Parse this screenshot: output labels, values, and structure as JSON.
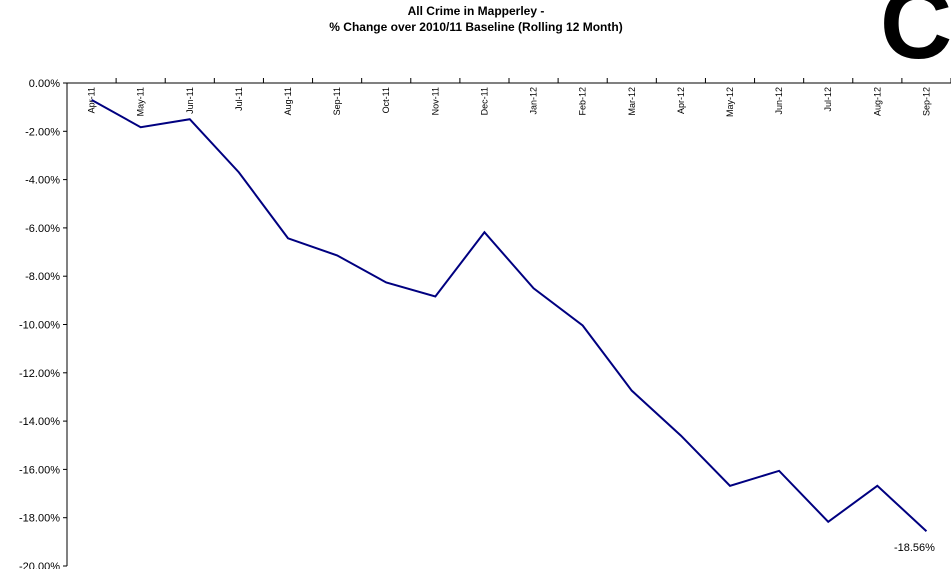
{
  "chart_data": {
    "type": "line",
    "title": [
      "All Crime in Mapperley -",
      "% Change over 2010/11 Baseline (Rolling 12 Month)"
    ],
    "corner_text": "C",
    "categories": [
      "Apr-11",
      "May-11",
      "Jun-11",
      "Jul-11",
      "Aug-11",
      "Sep-11",
      "Oct-11",
      "Nov-11",
      "Dec-11",
      "Jan-12",
      "Feb-12",
      "Mar-12",
      "Apr-12",
      "May-12",
      "Jun-12",
      "Jul-12",
      "Aug-12",
      "Sep-12"
    ],
    "series": [
      {
        "color": "#000080",
        "values": [
          -0.7,
          -1.83,
          -1.5,
          -3.7,
          -6.43,
          -7.14,
          -8.26,
          -8.84,
          -6.18,
          -8.5,
          -10.04,
          -12.74,
          -14.6,
          -16.68,
          -16.06,
          -18.17,
          -16.68,
          -18.56
        ],
        "value_labels": [
          null,
          null,
          null,
          null,
          null,
          null,
          null,
          null,
          null,
          null,
          null,
          null,
          null,
          null,
          null,
          null,
          null,
          "-18.56%"
        ]
      }
    ],
    "ylim": [
      -20,
      0
    ],
    "yticks": [
      {
        "value": 0,
        "label": "0.00%"
      },
      {
        "value": -2,
        "label": "-2.00%"
      },
      {
        "value": -4,
        "label": "-4.00%"
      },
      {
        "value": -6,
        "label": "-6.00%"
      },
      {
        "value": -8,
        "label": "-8.00%"
      },
      {
        "value": -10,
        "label": "-10.00%"
      },
      {
        "value": -12,
        "label": "-12.00%"
      },
      {
        "value": -14,
        "label": "-14.00%"
      },
      {
        "value": -16,
        "label": "-16.00%"
      },
      {
        "value": -18,
        "label": "-18.00%"
      },
      {
        "value": -20,
        "label": "-20.00%"
      }
    ],
    "grid": false
  }
}
